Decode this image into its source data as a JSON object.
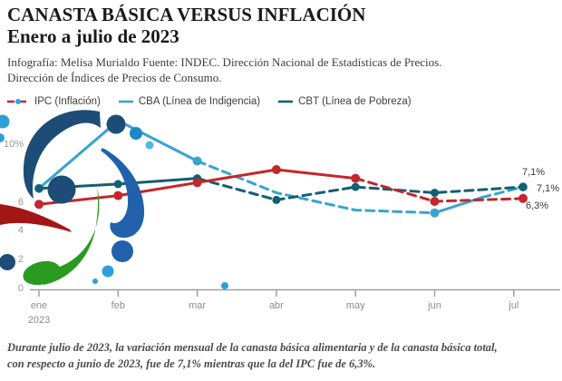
{
  "header": {
    "title_line1": "CANASTA BÁSICA VERSUS INFLACIÓN",
    "title_line2": "Enero a julio de 2023",
    "credit_line1": "Infografía: Melisa Murialdo Fuente: INDEC. Dirección Nacional de Estadísticas de Precios.",
    "credit_line2": "Dirección de Índices de Precios de Consumo."
  },
  "legend": {
    "items": [
      {
        "label": "IPC (Inflación)",
        "line_color": "#c4262b",
        "dot_color": "#29a8e0"
      },
      {
        "label": "CBA (Línea de Indigencia)",
        "line_color": "#3aa3cf"
      },
      {
        "label": "CBT (Línea de Pobreza)",
        "line_color": "#155e72"
      }
    ]
  },
  "chart_data": {
    "type": "line",
    "title": "Canasta básica versus inflación, enero a julio de 2023",
    "x_categories": [
      "ene",
      "feb",
      "mar",
      "abr",
      "may",
      "jun",
      "jul"
    ],
    "x_year_label": "2023",
    "y_axis": {
      "unit": "%",
      "range": [
        0,
        12
      ],
      "grid": false,
      "ticks": [
        {
          "label": "10%",
          "value": 10
        },
        {
          "label": "6",
          "value": 6
        },
        {
          "label": "4",
          "value": 4
        },
        {
          "label": "2",
          "value": 2
        },
        {
          "label": "0",
          "value": 0
        }
      ]
    },
    "legend_position": "top-left",
    "series": [
      {
        "name": "CBA (Línea de Indigencia)",
        "color": "#3aa3cf",
        "marker_radius": 5,
        "values": [
          7.0,
          11.7,
          8.9,
          6.7,
          5.5,
          5.3,
          7.1
        ],
        "segments": [
          {
            "from": 0,
            "to": 2,
            "dashed": false
          },
          {
            "from": 2,
            "to": 5,
            "dashed": true
          },
          {
            "from": 5,
            "to": 5.6,
            "dashed": false
          },
          {
            "from": 5.6,
            "to": 6,
            "dashed": true
          }
        ],
        "markers": [
          0,
          1,
          2,
          5,
          6
        ]
      },
      {
        "name": "CBT (Línea de Pobreza)",
        "color": "#155e72",
        "marker_radius": 4.5,
        "values": [
          7.0,
          7.3,
          7.7,
          6.2,
          7.1,
          6.7,
          7.1
        ],
        "segments": [
          {
            "from": 0,
            "to": 2,
            "dashed": false
          },
          {
            "from": 2,
            "to": 6,
            "dashed": true
          }
        ],
        "markers": [
          0,
          1,
          2,
          3,
          4,
          5,
          6
        ]
      },
      {
        "name": "IPC (Inflación)",
        "color": "#c4262b",
        "marker_radius": 5,
        "values": [
          5.9,
          6.5,
          7.4,
          8.3,
          7.7,
          6.1,
          6.3
        ],
        "segments": [
          {
            "from": 0,
            "to": 4,
            "dashed": false
          },
          {
            "from": 4,
            "to": 6,
            "dashed": true
          }
        ],
        "markers": [
          0,
          1,
          2,
          3,
          4,
          5,
          6
        ]
      }
    ],
    "annotations": [
      {
        "text": "7,1%",
        "x": 576,
        "y": 184
      },
      {
        "text": "7,1%",
        "x": 592,
        "y": 202
      },
      {
        "text": "6,3%",
        "x": 580,
        "y": 221
      }
    ]
  },
  "footnote": {
    "line1": "Durante julio de 2023, la variación mensual de la canasta básica alimentaria y de la canasta básica total,",
    "line2": "con respecto a junio de 2023, fue de 7,1% mientras que la del IPC fue de 6,3%."
  },
  "decor": {
    "navy": "#1d4d77",
    "blue": "#2161ac",
    "light_blue": "#2d9fd8",
    "lighter_blue": "#4db8e6",
    "mid_blue": "#1b86c8",
    "green": "#2a9a21",
    "dark_red": "#a11715"
  }
}
